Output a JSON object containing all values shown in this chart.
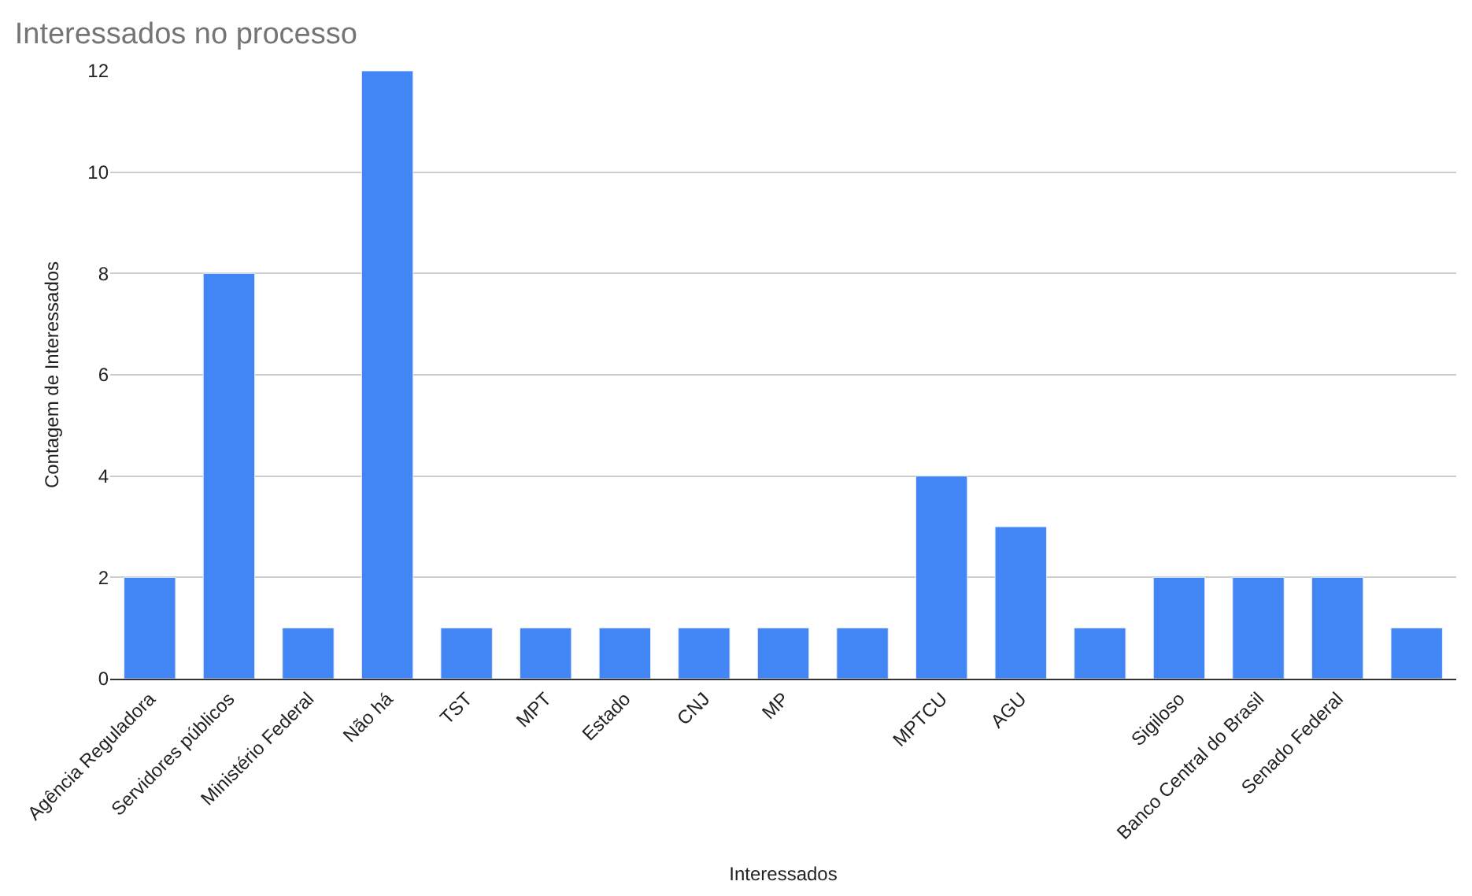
{
  "chart_data": {
    "type": "bar",
    "title": "Interessados no processo",
    "xlabel": "Interessados",
    "ylabel": "Contagem de Interessados",
    "categories": [
      "Agência Reguladora",
      "Servidores públicos",
      "Ministério Federal",
      "Não há",
      "TST",
      "MPT",
      "Estado",
      "CNJ",
      "MP",
      null,
      "MPTCU",
      "AGU",
      null,
      "Sigiloso",
      "Banco Central do Brasil",
      "Senado Federal",
      null
    ],
    "values": [
      2,
      8,
      1,
      12,
      1,
      1,
      1,
      1,
      1,
      1,
      4,
      3,
      1,
      2,
      2,
      2,
      1
    ],
    "color": "#4285f4",
    "ylim": [
      0,
      12
    ],
    "yticks": [
      0,
      2,
      4,
      6,
      8,
      10,
      12
    ],
    "grid": "y"
  }
}
